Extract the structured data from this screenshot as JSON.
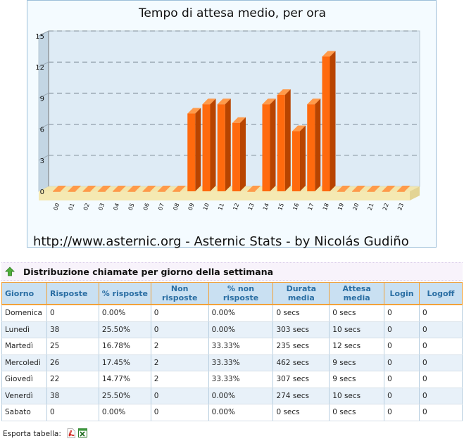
{
  "chart_data": {
    "type": "bar",
    "title": "Tempo di attesa medio, per ora",
    "footer": "http://www.asternic.org - Asternic Stats - by Nicolás Gudiño",
    "categories": [
      "00",
      "01",
      "02",
      "03",
      "04",
      "05",
      "06",
      "07",
      "08",
      "09",
      "10",
      "11",
      "12",
      "13",
      "14",
      "15",
      "16",
      "17",
      "18",
      "19",
      "20",
      "21",
      "22",
      "23"
    ],
    "values": [
      0,
      0,
      0,
      0,
      0,
      0,
      0,
      0,
      0,
      7.5,
      8.4,
      8.4,
      6.6,
      0,
      8.4,
      9.3,
      5.8,
      8.4,
      13,
      0,
      0,
      0,
      0,
      0
    ],
    "yticks": [
      "15",
      "12",
      "9",
      "6",
      "3",
      "0"
    ],
    "ylim": [
      0,
      15
    ],
    "grid": true,
    "bar_color": "#ff6a0e"
  },
  "section": {
    "title": "Distribuzione chiamate per giorno della settimana"
  },
  "table": {
    "headers": [
      "Giorno",
      "Risposte",
      "% risposte",
      "Non risposte",
      "% non risposte",
      "Durata media",
      "Attesa media",
      "Login",
      "Logoff"
    ],
    "rows": [
      [
        "Domenica",
        "0",
        "0.00%",
        "0",
        "0.00%",
        "0 secs",
        "0 secs",
        "0",
        "0"
      ],
      [
        "Lunedì",
        "38",
        "25.50%",
        "0",
        "0.00%",
        "303 secs",
        "10 secs",
        "0",
        "0"
      ],
      [
        "Martedì",
        "25",
        "16.78%",
        "2",
        "33.33%",
        "235 secs",
        "12 secs",
        "0",
        "0"
      ],
      [
        "Mercoledì",
        "26",
        "17.45%",
        "2",
        "33.33%",
        "462 secs",
        "9 secs",
        "0",
        "0"
      ],
      [
        "Giovedì",
        "22",
        "14.77%",
        "2",
        "33.33%",
        "307 secs",
        "9 secs",
        "0",
        "0"
      ],
      [
        "Venerdì",
        "38",
        "25.50%",
        "0",
        "0.00%",
        "274 secs",
        "10 secs",
        "0",
        "0"
      ],
      [
        "Sabato",
        "0",
        "0.00%",
        "0",
        "0.00%",
        "0 secs",
        "0 secs",
        "0",
        "0"
      ]
    ]
  },
  "export": {
    "label": "Esporta tabella:"
  },
  "icons": {
    "up": "arrow-up-icon",
    "pdf": "pdf-icon",
    "xls": "excel-icon"
  }
}
